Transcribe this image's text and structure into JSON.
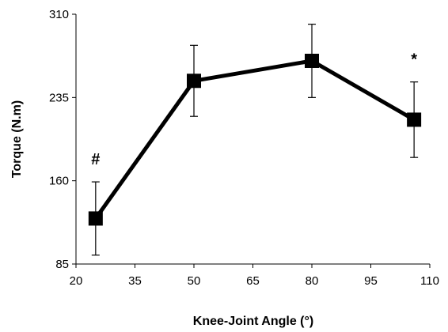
{
  "chart_data": {
    "type": "line",
    "xlabel": "Knee-Joint Angle (°)",
    "ylabel": "Torque (N.m)",
    "xlim": [
      20,
      110
    ],
    "ylim": [
      85,
      310
    ],
    "xticks": [
      20,
      35,
      50,
      65,
      80,
      95,
      110
    ],
    "yticks": [
      85,
      160,
      235,
      310
    ],
    "grid": false,
    "series": [
      {
        "x": [
          25,
          50,
          80,
          106
        ],
        "y": [
          126,
          250,
          268,
          215
        ],
        "error": [
          33,
          32,
          33,
          34
        ],
        "marker": "square",
        "color": "#000000"
      }
    ],
    "annotations": [
      {
        "text": "#",
        "x": 25
      },
      {
        "text": "*",
        "x": 106
      }
    ]
  }
}
